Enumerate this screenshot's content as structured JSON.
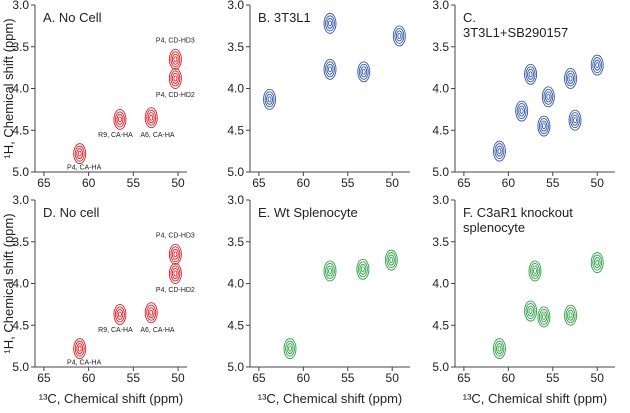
{
  "chart_data": [
    {
      "type": "contour",
      "title": "A. No Cell",
      "color": "#e01b24",
      "ylabel": "¹H, Chemical shift (ppm)",
      "x": [
        61,
        56.5,
        53,
        50.3,
        50.3
      ],
      "y": [
        4.78,
        4.37,
        4.35,
        3.65,
        3.88
      ],
      "annotations": [
        {
          "text": "P4, CA-HA",
          "x": 60.5,
          "y": 4.97
        },
        {
          "text": "R9, CA-HA",
          "x": 57,
          "y": 4.58
        },
        {
          "text": "A6, CA-HA",
          "x": 52.3,
          "y": 4.58
        },
        {
          "text": "P4, CD-HD3",
          "x": 50.3,
          "y": 3.45
        },
        {
          "text": "P4, CD-HD2",
          "x": 50.3,
          "y": 4.1
        }
      ],
      "xlim": [
        66,
        49
      ],
      "ylim": [
        5,
        3
      ],
      "xticks": [
        65,
        60,
        55,
        50
      ],
      "yticks": [
        {
          "value": 3,
          "label": "3.0"
        },
        3.5,
        {
          "value": 4,
          "label": "4.0"
        },
        4.5,
        {
          "value": 5,
          "label": "5.0"
        }
      ]
    },
    {
      "type": "contour",
      "title": "B. 3T3L1",
      "color": "#3557a8",
      "x": [
        63.8,
        57,
        57,
        53.2,
        49.2
      ],
      "y": [
        4.13,
        3.77,
        3.22,
        3.8,
        3.37
      ],
      "xlim": [
        66,
        48
      ],
      "ylim": [
        5,
        3
      ],
      "xticks": [
        65,
        60,
        55,
        50
      ],
      "yticks": [
        {
          "value": 3,
          "label": "3.0"
        },
        3.5,
        {
          "value": 4,
          "label": "4.0"
        },
        4.5,
        {
          "value": 5,
          "label": "5.0"
        }
      ]
    },
    {
      "type": "contour",
      "title": "C. 3T3L1+SB290157",
      "color": "#3557a8",
      "x": [
        61,
        56,
        57.5,
        58.5,
        55.5,
        53,
        52.5,
        50
      ],
      "y": [
        4.75,
        4.45,
        3.83,
        4.27,
        4.1,
        3.88,
        4.38,
        3.72
      ],
      "xlim": [
        66,
        48
      ],
      "ylim": [
        5,
        3
      ],
      "xticks": [
        65,
        60,
        55,
        50
      ],
      "yticks": [
        {
          "value": 3,
          "label": "3.0"
        },
        3.5,
        {
          "value": 4,
          "label": "4.0"
        },
        4.5,
        {
          "value": 5,
          "label": "5.0"
        }
      ]
    },
    {
      "type": "contour",
      "title": "D. No cell",
      "color": "#e01b24",
      "ylabel": "¹H, Chemical shift (ppm)",
      "xlabel": "¹³C, Chemical shift (ppm)",
      "x": [
        61,
        56.5,
        53,
        50.3,
        50.3
      ],
      "y": [
        4.78,
        4.37,
        4.35,
        3.65,
        3.88
      ],
      "annotations": [
        {
          "text": "P4, CA-HA",
          "x": 60.5,
          "y": 4.97
        },
        {
          "text": "R9, CA-HA",
          "x": 57,
          "y": 4.58
        },
        {
          "text": "A6, CA-HA",
          "x": 52.3,
          "y": 4.58
        },
        {
          "text": "P4, CD-HD3",
          "x": 50.3,
          "y": 3.45
        },
        {
          "text": "P4, CD-HD2",
          "x": 50.3,
          "y": 4.1
        }
      ],
      "xlim": [
        66,
        49
      ],
      "ylim": [
        5,
        3
      ],
      "xticks": [
        65,
        60,
        55,
        50
      ],
      "yticks": [
        {
          "value": 3,
          "label": "3.0"
        },
        3.5,
        {
          "value": 4,
          "label": "4.0"
        },
        4.5,
        {
          "value": 5,
          "label": "5.0"
        }
      ]
    },
    {
      "type": "contour",
      "title": "E. Wt Splenocyte",
      "color": "#2ea043",
      "xlabel": "¹³C, Chemical shift (ppm)",
      "x": [
        61.5,
        57,
        53.3,
        50.1
      ],
      "y": [
        4.78,
        3.85,
        3.83,
        3.72
      ],
      "xlim": [
        66,
        48
      ],
      "ylim": [
        5,
        3
      ],
      "xticks": [
        65,
        60,
        55,
        50
      ],
      "yticks": [
        {
          "value": 3,
          "label": "3.0"
        },
        3.5,
        {
          "value": 4,
          "label": "4.0"
        },
        4.5,
        {
          "value": 5,
          "label": "5.0"
        }
      ]
    },
    {
      "type": "contour",
      "title": "F. C3aR1 knockout splenocyte",
      "color": "#2ea043",
      "xlabel": "¹³C, Chemical shift (ppm)",
      "x": [
        61,
        56,
        57.5,
        53,
        50,
        57
      ],
      "y": [
        4.78,
        4.4,
        4.33,
        4.38,
        3.75,
        3.85
      ],
      "xlim": [
        66,
        48
      ],
      "ylim": [
        5,
        3
      ],
      "xticks": [
        65,
        60,
        55,
        50
      ],
      "yticks": [
        {
          "value": 3,
          "label": "3.0"
        },
        3.5,
        {
          "value": 4,
          "label": "4.0"
        },
        4.5,
        {
          "value": 5,
          "label": "5.0"
        }
      ]
    }
  ]
}
